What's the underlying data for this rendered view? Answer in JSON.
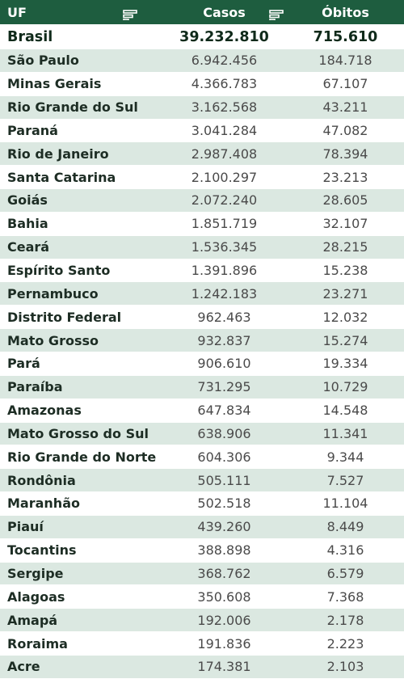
{
  "header": {
    "uf": "UF",
    "casos": "Casos",
    "obitos": "Óbitos",
    "sort_icon": "filter-sort-icon"
  },
  "total": {
    "uf": "Brasil",
    "casos": "39.232.810",
    "obitos": "715.610"
  },
  "rows": [
    {
      "uf": "São Paulo",
      "casos": "6.942.456",
      "obitos": "184.718"
    },
    {
      "uf": "Minas Gerais",
      "casos": "4.366.783",
      "obitos": "67.107"
    },
    {
      "uf": "Rio Grande do Sul",
      "casos": "3.162.568",
      "obitos": "43.211"
    },
    {
      "uf": "Paraná",
      "casos": "3.041.284",
      "obitos": "47.082"
    },
    {
      "uf": "Rio de Janeiro",
      "casos": "2.987.408",
      "obitos": "78.394"
    },
    {
      "uf": "Santa Catarina",
      "casos": "2.100.297",
      "obitos": "23.213"
    },
    {
      "uf": "Goiás",
      "casos": "2.072.240",
      "obitos": "28.605"
    },
    {
      "uf": "Bahia",
      "casos": "1.851.719",
      "obitos": "32.107"
    },
    {
      "uf": "Ceará",
      "casos": "1.536.345",
      "obitos": "28.215"
    },
    {
      "uf": "Espírito Santo",
      "casos": "1.391.896",
      "obitos": "15.238"
    },
    {
      "uf": "Pernambuco",
      "casos": "1.242.183",
      "obitos": "23.271"
    },
    {
      "uf": "Distrito Federal",
      "casos": "962.463",
      "obitos": "12.032"
    },
    {
      "uf": "Mato Grosso",
      "casos": "932.837",
      "obitos": "15.274"
    },
    {
      "uf": "Pará",
      "casos": "906.610",
      "obitos": "19.334"
    },
    {
      "uf": "Paraíba",
      "casos": "731.295",
      "obitos": "10.729"
    },
    {
      "uf": "Amazonas",
      "casos": "647.834",
      "obitos": "14.548"
    },
    {
      "uf": "Mato Grosso do Sul",
      "casos": "638.906",
      "obitos": "11.341"
    },
    {
      "uf": "Rio Grande do Norte",
      "casos": "604.306",
      "obitos": "9.344"
    },
    {
      "uf": "Rondônia",
      "casos": "505.111",
      "obitos": "7.527"
    },
    {
      "uf": "Maranhão",
      "casos": "502.518",
      "obitos": "11.104"
    },
    {
      "uf": "Piauí",
      "casos": "439.260",
      "obitos": "8.449"
    },
    {
      "uf": "Tocantins",
      "casos": "388.898",
      "obitos": "4.316"
    },
    {
      "uf": "Sergipe",
      "casos": "368.762",
      "obitos": "6.579"
    },
    {
      "uf": "Alagoas",
      "casos": "350.608",
      "obitos": "7.368"
    },
    {
      "uf": "Amapá",
      "casos": "192.006",
      "obitos": "2.178"
    },
    {
      "uf": "Roraima",
      "casos": "191.836",
      "obitos": "2.223"
    },
    {
      "uf": "Acre",
      "casos": "174.381",
      "obitos": "2.103"
    }
  ],
  "colors": {
    "header_bg": "#1e5d3f",
    "stripe_bg": "#dbe8e1"
  }
}
